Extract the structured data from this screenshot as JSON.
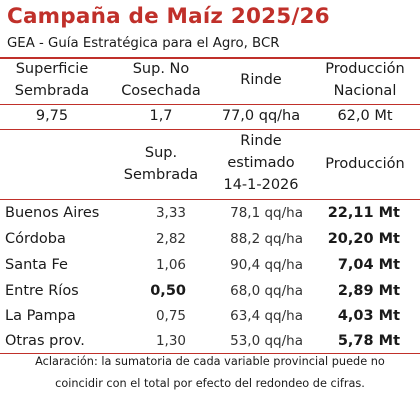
{
  "title": "Campaña de Maíz 2025/26",
  "subtitle": "GEA - Guía Estratégica para el Agro, BCR",
  "national": {
    "headers": {
      "superficie_l1": "Superficie",
      "superficie_l2": "Sembrada",
      "sup_no_l1": "Sup. No",
      "sup_no_l2": "Cosechada",
      "rinde": "Rinde",
      "produccion_l1": "Producción",
      "produccion_l2": "Nacional"
    },
    "values": {
      "superficie": "9,75",
      "sup_no": "1,7",
      "rinde": "77,0 qq/ha",
      "produccion": "62,0 Mt"
    }
  },
  "provincial": {
    "headers": {
      "sup_l1": "Sup.",
      "sup_l2": "Sembrada",
      "rinde_l1": "Rinde",
      "rinde_l2": "estimado",
      "rinde_l3": "14-1-2026",
      "produccion": "Producción"
    },
    "rows": [
      {
        "name": "Buenos Aires",
        "sup": "3,33",
        "rinde": "78,1 qq/ha",
        "prod": "22,11 Mt"
      },
      {
        "name": "Córdoba",
        "sup": "2,82",
        "rinde": "88,2 qq/ha",
        "prod": "20,20 Mt"
      },
      {
        "name": "Santa Fe",
        "sup": "1,06",
        "rinde": "90,4 qq/ha",
        "prod": "7,04 Mt"
      },
      {
        "name": "Entre Ríos",
        "sup": "0,50",
        "rinde": "68,0 qq/ha",
        "prod": "2,89 Mt"
      },
      {
        "name": "La Pampa",
        "sup": "0,75",
        "rinde": "63,4 qq/ha",
        "prod": "4,03 Mt"
      },
      {
        "name": "Otras prov.",
        "sup": "1,30",
        "rinde": "53,0 qq/ha",
        "prod": "5,78 Mt"
      }
    ]
  },
  "note": {
    "line1": "Aclaración: la sumatoria de cada variable provincial puede no",
    "line2": "coincidir con el total por efecto del redondeo de cifras."
  },
  "colors": {
    "accent": "#c0302a"
  }
}
